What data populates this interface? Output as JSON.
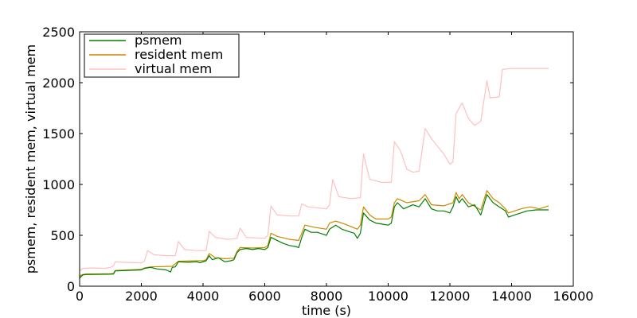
{
  "chart_data": {
    "type": "line",
    "title": "",
    "xlabel": "time (s)",
    "ylabel": "psmem, resident mem, virtual mem",
    "xlim": [
      0,
      16000
    ],
    "ylim": [
      0,
      2500
    ],
    "xticks": [
      0,
      2000,
      4000,
      6000,
      8000,
      10000,
      12000,
      14000,
      16000
    ],
    "xtick_labels": [
      "0",
      "2000",
      "4000",
      "6000",
      "8000",
      "10000",
      "12000",
      "14000",
      "16000"
    ],
    "yticks": [
      0,
      500,
      1000,
      1500,
      2000,
      2500
    ],
    "ytick_labels": [
      "0",
      "500",
      "1000",
      "1500",
      "2000",
      "2500"
    ],
    "grid": false,
    "legend_position": "top-left",
    "series": [
      {
        "name": "psmem",
        "color": "#008000",
        "points": [
          [
            0,
            80
          ],
          [
            100,
            110
          ],
          [
            200,
            115
          ],
          [
            1000,
            118
          ],
          [
            1100,
            120
          ],
          [
            1150,
            150
          ],
          [
            2000,
            160
          ],
          [
            2100,
            175
          ],
          [
            2300,
            185
          ],
          [
            2500,
            170
          ],
          [
            2800,
            160
          ],
          [
            2950,
            140
          ],
          [
            3000,
            185
          ],
          [
            3100,
            190
          ],
          [
            3200,
            240
          ],
          [
            3500,
            235
          ],
          [
            3800,
            240
          ],
          [
            3900,
            230
          ],
          [
            4100,
            250
          ],
          [
            4200,
            300
          ],
          [
            4300,
            260
          ],
          [
            4500,
            280
          ],
          [
            4700,
            240
          ],
          [
            4900,
            250
          ],
          [
            5000,
            260
          ],
          [
            5100,
            330
          ],
          [
            5200,
            360
          ],
          [
            5400,
            370
          ],
          [
            5600,
            360
          ],
          [
            5800,
            370
          ],
          [
            6000,
            360
          ],
          [
            6100,
            380
          ],
          [
            6200,
            480
          ],
          [
            6400,
            450
          ],
          [
            6600,
            420
          ],
          [
            6800,
            400
          ],
          [
            7000,
            390
          ],
          [
            7100,
            380
          ],
          [
            7200,
            480
          ],
          [
            7300,
            560
          ],
          [
            7500,
            530
          ],
          [
            7700,
            530
          ],
          [
            7900,
            510
          ],
          [
            8000,
            500
          ],
          [
            8100,
            560
          ],
          [
            8300,
            600
          ],
          [
            8500,
            560
          ],
          [
            8700,
            540
          ],
          [
            8900,
            520
          ],
          [
            9000,
            470
          ],
          [
            9100,
            520
          ],
          [
            9200,
            720
          ],
          [
            9400,
            650
          ],
          [
            9600,
            620
          ],
          [
            9800,
            610
          ],
          [
            10000,
            600
          ],
          [
            10100,
            620
          ],
          [
            10200,
            780
          ],
          [
            10300,
            820
          ],
          [
            10500,
            760
          ],
          [
            10800,
            800
          ],
          [
            11000,
            780
          ],
          [
            11200,
            860
          ],
          [
            11400,
            760
          ],
          [
            11600,
            740
          ],
          [
            11800,
            740
          ],
          [
            12000,
            720
          ],
          [
            12100,
            780
          ],
          [
            12200,
            880
          ],
          [
            12300,
            820
          ],
          [
            12400,
            860
          ],
          [
            12600,
            780
          ],
          [
            12800,
            800
          ],
          [
            13000,
            700
          ],
          [
            13200,
            900
          ],
          [
            13400,
            820
          ],
          [
            13600,
            780
          ],
          [
            13800,
            740
          ],
          [
            13900,
            680
          ],
          [
            14000,
            690
          ],
          [
            14200,
            710
          ],
          [
            14500,
            740
          ],
          [
            14800,
            750
          ],
          [
            15200,
            750
          ]
        ]
      },
      {
        "name": "resident mem",
        "color": "#cc8800",
        "points": [
          [
            0,
            100
          ],
          [
            100,
            115
          ],
          [
            200,
            120
          ],
          [
            1000,
            122
          ],
          [
            1100,
            125
          ],
          [
            1150,
            155
          ],
          [
            2000,
            165
          ],
          [
            2100,
            180
          ],
          [
            2300,
            190
          ],
          [
            3000,
            195
          ],
          [
            3200,
            245
          ],
          [
            3800,
            250
          ],
          [
            4000,
            250
          ],
          [
            4100,
            260
          ],
          [
            4200,
            320
          ],
          [
            4400,
            280
          ],
          [
            4700,
            270
          ],
          [
            5000,
            275
          ],
          [
            5100,
            340
          ],
          [
            5200,
            380
          ],
          [
            5600,
            375
          ],
          [
            6000,
            380
          ],
          [
            6100,
            400
          ],
          [
            6200,
            520
          ],
          [
            6400,
            490
          ],
          [
            6800,
            460
          ],
          [
            7100,
            450
          ],
          [
            7200,
            520
          ],
          [
            7300,
            600
          ],
          [
            7600,
            580
          ],
          [
            8000,
            560
          ],
          [
            8100,
            620
          ],
          [
            8300,
            640
          ],
          [
            8600,
            610
          ],
          [
            9000,
            560
          ],
          [
            9100,
            600
          ],
          [
            9200,
            780
          ],
          [
            9400,
            700
          ],
          [
            9600,
            660
          ],
          [
            10000,
            660
          ],
          [
            10100,
            680
          ],
          [
            10200,
            820
          ],
          [
            10300,
            860
          ],
          [
            10600,
            820
          ],
          [
            11000,
            840
          ],
          [
            11200,
            900
          ],
          [
            11400,
            800
          ],
          [
            11800,
            790
          ],
          [
            12100,
            820
          ],
          [
            12200,
            920
          ],
          [
            12300,
            860
          ],
          [
            12400,
            900
          ],
          [
            12600,
            820
          ],
          [
            13000,
            750
          ],
          [
            13200,
            940
          ],
          [
            13400,
            860
          ],
          [
            13600,
            820
          ],
          [
            13800,
            760
          ],
          [
            13900,
            720
          ],
          [
            14000,
            730
          ],
          [
            14300,
            760
          ],
          [
            14600,
            780
          ],
          [
            14900,
            760
          ],
          [
            15200,
            790
          ]
        ]
      },
      {
        "name": "virtual mem",
        "color": "#ffc0c0",
        "points": [
          [
            0,
            150
          ],
          [
            100,
            175
          ],
          [
            400,
            180
          ],
          [
            800,
            175
          ],
          [
            1000,
            185
          ],
          [
            1100,
            200
          ],
          [
            1150,
            240
          ],
          [
            1400,
            235
          ],
          [
            2000,
            230
          ],
          [
            2100,
            245
          ],
          [
            2200,
            350
          ],
          [
            2400,
            310
          ],
          [
            2800,
            300
          ],
          [
            3100,
            300
          ],
          [
            3200,
            440
          ],
          [
            3400,
            360
          ],
          [
            3800,
            350
          ],
          [
            4100,
            350
          ],
          [
            4200,
            540
          ],
          [
            4400,
            480
          ],
          [
            4800,
            460
          ],
          [
            5100,
            470
          ],
          [
            5200,
            570
          ],
          [
            5400,
            480
          ],
          [
            6000,
            470
          ],
          [
            6100,
            500
          ],
          [
            6200,
            790
          ],
          [
            6400,
            700
          ],
          [
            6800,
            690
          ],
          [
            7100,
            690
          ],
          [
            7200,
            810
          ],
          [
            7400,
            780
          ],
          [
            8000,
            760
          ],
          [
            8100,
            800
          ],
          [
            8200,
            1050
          ],
          [
            8400,
            880
          ],
          [
            8800,
            860
          ],
          [
            9100,
            870
          ],
          [
            9200,
            1300
          ],
          [
            9400,
            1050
          ],
          [
            9800,
            1020
          ],
          [
            10100,
            1020
          ],
          [
            10200,
            1420
          ],
          [
            10400,
            1330
          ],
          [
            10600,
            1150
          ],
          [
            10800,
            1120
          ],
          [
            11000,
            1130
          ],
          [
            11200,
            1550
          ],
          [
            11400,
            1450
          ],
          [
            11800,
            1300
          ],
          [
            12000,
            1200
          ],
          [
            12100,
            1220
          ],
          [
            12200,
            1700
          ],
          [
            12400,
            1800
          ],
          [
            12600,
            1650
          ],
          [
            12800,
            1580
          ],
          [
            13000,
            1620
          ],
          [
            13200,
            2020
          ],
          [
            13300,
            1850
          ],
          [
            13600,
            1860
          ],
          [
            13700,
            2130
          ],
          [
            14000,
            2140
          ],
          [
            15200,
            2140
          ]
        ]
      }
    ]
  }
}
